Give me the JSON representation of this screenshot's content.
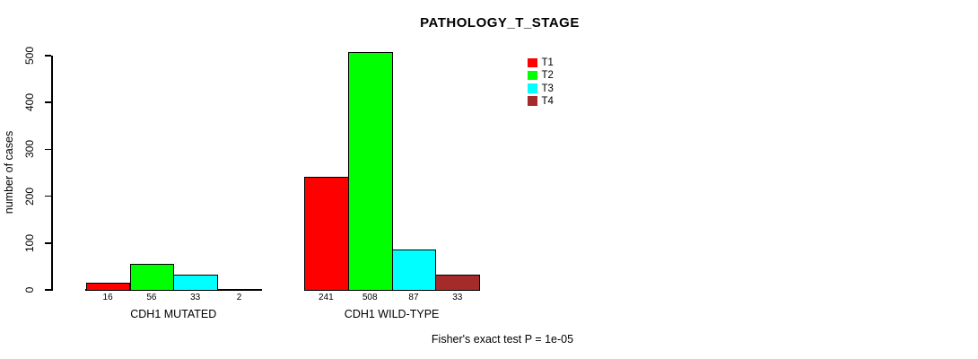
{
  "chart_data": {
    "type": "bar",
    "title": "PATHOLOGY_T_STAGE",
    "ylabel": "number of cases",
    "xlabel": "",
    "ylim": [
      0,
      500
    ],
    "yticks": [
      0,
      100,
      200,
      300,
      400,
      500
    ],
    "categories": [
      "CDH1 MUTATED",
      "CDH1 WILD-TYPE"
    ],
    "series": [
      {
        "name": "T1",
        "color": "#ff0000",
        "values": [
          16,
          241
        ]
      },
      {
        "name": "T2",
        "color": "#00ff00",
        "values": [
          56,
          508
        ]
      },
      {
        "name": "T3",
        "color": "#00ffff",
        "values": [
          33,
          87
        ]
      },
      {
        "name": "T4",
        "color": "#a52a2a",
        "values": [
          2,
          33
        ]
      }
    ],
    "bar_value_labels": {
      "CDH1 MUTATED": [
        "16",
        "56",
        "33",
        "2"
      ],
      "CDH1 WILD-TYPE": [
        "241",
        "508",
        "87",
        "33"
      ]
    },
    "legend_position": "top-right",
    "legend_entries": [
      "T1",
      "T2",
      "T3",
      "T4"
    ],
    "grid": false,
    "annotation": "Fisher's exact test P = 1e-05"
  }
}
